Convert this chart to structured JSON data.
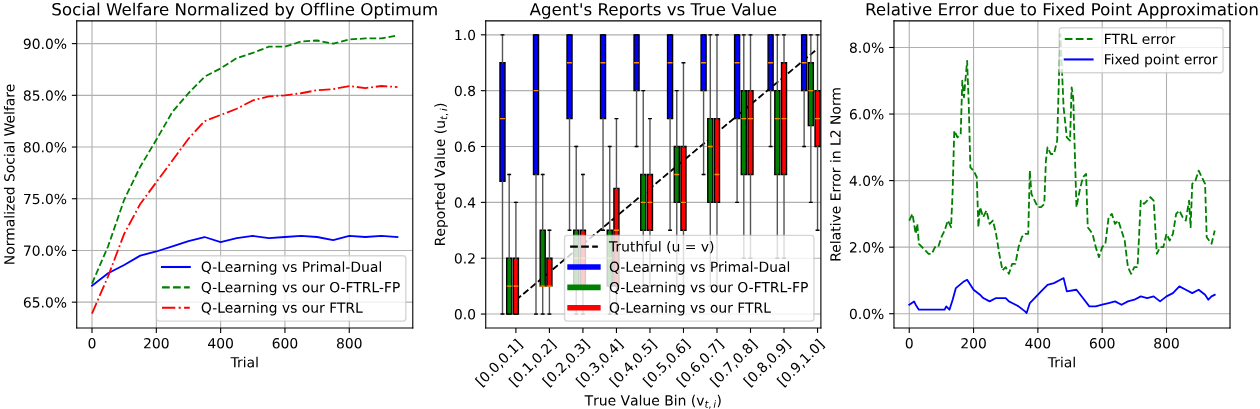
{
  "chart_data": [
    {
      "type": "line",
      "title": "Social Welfare Normalized by Offline Optimum",
      "xlabel": "Trial",
      "ylabel": "Normalized Social Welfare",
      "x": [
        0,
        50,
        100,
        150,
        200,
        250,
        300,
        350,
        400,
        450,
        500,
        550,
        600,
        650,
        700,
        750,
        800,
        850,
        900,
        950
      ],
      "series": [
        {
          "name": "Q-Learning vs Primal-Dual",
          "color": "#0000ff",
          "line_style": "solid",
          "values": [
            66.6,
            67.8,
            68.6,
            69.5,
            69.9,
            70.4,
            70.9,
            71.3,
            70.8,
            71.2,
            71.4,
            71.2,
            71.3,
            71.4,
            71.3,
            71.0,
            71.4,
            71.3,
            71.4,
            71.3
          ]
        },
        {
          "name": "Q-Learning vs our O-FTRL-FP",
          "color": "#008000",
          "line_style": "dashed",
          "values": [
            66.8,
            70.4,
            74.9,
            78.1,
            80.7,
            83.4,
            85.2,
            86.8,
            87.6,
            88.6,
            89.1,
            89.7,
            89.7,
            90.2,
            90.3,
            90.0,
            90.4,
            90.5,
            90.5,
            90.8
          ]
        },
        {
          "name": "Q-Learning vs our FTRL",
          "color": "#ff0000",
          "line_style": "dashdot",
          "values": [
            63.9,
            67.5,
            71.6,
            74.5,
            76.6,
            78.7,
            80.8,
            82.5,
            83.1,
            83.7,
            84.5,
            84.9,
            85.0,
            85.2,
            85.5,
            85.6,
            85.9,
            85.7,
            85.9,
            85.8
          ]
        }
      ],
      "xlim": [
        -47.5,
        997.5
      ],
      "ylim": [
        62.5,
        92.2
      ],
      "xticks": [
        0,
        200,
        400,
        600,
        800
      ],
      "yticks": [
        {
          "value": 65,
          "label": "65.0%"
        },
        {
          "value": 70,
          "label": "70.0%"
        },
        {
          "value": 75,
          "label": "75.0%"
        },
        {
          "value": 80,
          "label": "80.0%"
        },
        {
          "value": 85,
          "label": "85.0%"
        },
        {
          "value": 90,
          "label": "90.0%"
        }
      ],
      "grid": true,
      "legend": "bottom right"
    },
    {
      "type": "box",
      "title": "Agent's Reports vs True Value",
      "xlabel": "True Value Bin (v$_{t,i}$)",
      "ylabel": "Reported Value (u$_{t,i}$)",
      "categories": [
        "[0.0,0.1]",
        "[0.1,0.2]",
        "[0.2,0.3]",
        "[0.3,0.4]",
        "[0.4,0.5]",
        "[0.5,0.6]",
        "[0.6,0.7]",
        "[0.7,0.8]",
        "[0.8,0.9]",
        "[0.9,1.0]"
      ],
      "series": [
        {
          "name": "Truthful (u = v)",
          "type": "line",
          "color": "#000000",
          "line_style": "dashed",
          "values": [
            0.05,
            0.15,
            0.25,
            0.35,
            0.45,
            0.55,
            0.65,
            0.75,
            0.85,
            0.95
          ]
        },
        {
          "name": "Q-Learning vs Primal-Dual",
          "type": "box",
          "color": "#0000ff",
          "boxes": [
            {
              "low": 0,
              "q1": 0.475,
              "median": 0.7,
              "q3": 0.9,
              "high": 1.0
            },
            {
              "low": 0,
              "q1": 0.5,
              "median": 0.8,
              "q3": 1.0,
              "high": 1.0
            },
            {
              "low": 0.3,
              "q1": 0.7,
              "median": 0.9,
              "q3": 1.0,
              "high": 1.0
            },
            {
              "low": 0.3,
              "q1": 0.7,
              "median": 0.9,
              "q3": 1.0,
              "high": 1.0
            },
            {
              "low": 0.6,
              "q1": 0.8,
              "median": 0.9,
              "q3": 1.0,
              "high": 1.0
            },
            {
              "low": 0.3,
              "q1": 0.7,
              "median": 0.9,
              "q3": 1.0,
              "high": 1.0
            },
            {
              "low": 0.5,
              "q1": 0.8,
              "median": 0.9,
              "q3": 1.0,
              "high": 1.0
            },
            {
              "low": 0.4,
              "q1": 0.7,
              "median": 0.9,
              "q3": 1.0,
              "high": 1.0
            },
            {
              "low": 0.6,
              "q1": 0.8,
              "median": 0.9,
              "q3": 1.0,
              "high": 1.0
            },
            {
              "low": 0.6,
              "q1": 0.8,
              "median": 0.9,
              "q3": 1.0,
              "high": 1.0
            }
          ]
        },
        {
          "name": "Q-Learning vs our O-FTRL-FP",
          "type": "box",
          "color": "#008000",
          "boxes": [
            {
              "low": 0,
              "q1": 0,
              "median": 0.1,
              "q3": 0.2,
              "high": 0.5
            },
            {
              "low": 0,
              "q1": 0.1,
              "median": 0.1,
              "q3": 0.3,
              "high": 0.5
            },
            {
              "low": 0,
              "q1": 0.1,
              "median": 0.2,
              "q3": 0.3,
              "high": 0.6
            },
            {
              "low": 0,
              "q1": 0.1,
              "median": 0.2,
              "q3": 0.3,
              "high": 0.6
            },
            {
              "low": 0.1,
              "q1": 0.3,
              "median": 0.4,
              "q3": 0.5,
              "high": 0.8
            },
            {
              "low": 0.1,
              "q1": 0.4,
              "median": 0.5,
              "q3": 0.6,
              "high": 0.8
            },
            {
              "low": 0.1,
              "q1": 0.4,
              "median": 0.6,
              "q3": 0.7,
              "high": 1.0
            },
            {
              "low": 0.2,
              "q1": 0.5,
              "median": 0.7,
              "q3": 0.8,
              "high": 1.0
            },
            {
              "low": 0.2,
              "q1": 0.5,
              "median": 0.7,
              "q3": 0.8,
              "high": 1.0
            },
            {
              "low": 0.4,
              "q1": 0.675,
              "median": 0.8,
              "q3": 0.9,
              "high": 1.0
            }
          ]
        },
        {
          "name": "Q-Learning vs our FTRL",
          "type": "box",
          "color": "#ff0000",
          "boxes": [
            {
              "low": 0,
              "q1": 0,
              "median": 0.1,
              "q3": 0.2,
              "high": 0.4
            },
            {
              "low": 0,
              "q1": 0.1,
              "median": 0.1,
              "q3": 0.2,
              "high": 0.3
            },
            {
              "low": 0,
              "q1": 0.1,
              "median": 0.2,
              "q3": 0.3,
              "high": 0.5
            },
            {
              "low": 0,
              "q1": 0.1,
              "median": 0.3,
              "q3": 0.45,
              "high": 0.7
            },
            {
              "low": 0.1,
              "q1": 0.3,
              "median": 0.4,
              "q3": 0.5,
              "high": 0.7
            },
            {
              "low": 0.1,
              "q1": 0.3,
              "median": 0.4,
              "q3": 0.6,
              "high": 0.9
            },
            {
              "low": 0.1,
              "q1": 0.4,
              "median": 0.5,
              "q3": 0.7,
              "high": 1.0
            },
            {
              "low": 0.2,
              "q1": 0.5,
              "median": 0.7,
              "q3": 0.8,
              "high": 1.0
            },
            {
              "low": 0.2,
              "q1": 0.5,
              "median": 0.7,
              "q3": 0.9,
              "high": 1.0
            },
            {
              "low": 0.3,
              "q1": 0.6,
              "median": 0.7,
              "q3": 0.8,
              "high": 1.0
            }
          ]
        }
      ],
      "ylim": [
        -0.05,
        1.05
      ],
      "yticks": [
        {
          "value": 0,
          "label": "0.0"
        },
        {
          "value": 0.2,
          "label": "0.2"
        },
        {
          "value": 0.4,
          "label": "0.4"
        },
        {
          "value": 0.6,
          "label": "0.6"
        },
        {
          "value": 0.8,
          "label": "0.8"
        },
        {
          "value": 1.0,
          "label": "1.0"
        }
      ],
      "grid": "y",
      "legend": "bottom right"
    },
    {
      "type": "line",
      "title": "Relative Error due to Fixed Point Approximation",
      "xlabel": "Trial",
      "ylabel": "Relative Error in L2 Norm",
      "series": [
        {
          "name": "FTRL error",
          "color": "#008000",
          "line_style": "dashed",
          "x": [
            0,
            10,
            20,
            25,
            30,
            40,
            50,
            60,
            70,
            80,
            90,
            100,
            110,
            120,
            130,
            135,
            140,
            150,
            160,
            165,
            170,
            180,
            185,
            190,
            200,
            210,
            215,
            220,
            230,
            240,
            250,
            260,
            270,
            280,
            290,
            300,
            310,
            320,
            330,
            340,
            350,
            360,
            370,
            375,
            380,
            390,
            400,
            410,
            420,
            425,
            430,
            440,
            450,
            460,
            465,
            470,
            480,
            490,
            500,
            505,
            510,
            515,
            520,
            530,
            540,
            550,
            555,
            570,
            580,
            590,
            600,
            610,
            620,
            630,
            640,
            650,
            660,
            670,
            680,
            690,
            700,
            710,
            720,
            730,
            740,
            750,
            760,
            770,
            780,
            790,
            800,
            810,
            820,
            830,
            840,
            850,
            860,
            870,
            875,
            880,
            890,
            900,
            910,
            920,
            925,
            940,
            950
          ],
          "values": [
            2.8,
            3.0,
            2.4,
            2.7,
            2.1,
            2.0,
            1.9,
            1.8,
            1.8,
            2.0,
            2.0,
            2.3,
            2.5,
            2.8,
            2.6,
            3.7,
            5.5,
            5.3,
            5.4,
            7.0,
            6.5,
            7.6,
            6.3,
            4.4,
            4.3,
            4.1,
            2.6,
            3.2,
            2.9,
            3.1,
            2.7,
            2.8,
            2.4,
            1.8,
            1.3,
            1.4,
            1.2,
            1.5,
            1.5,
            2.0,
            2.3,
            2.4,
            2.4,
            4.3,
            3.6,
            3.4,
            3.2,
            3.2,
            3.3,
            4.6,
            5.0,
            4.8,
            4.8,
            5.2,
            6.9,
            8.4,
            6.2,
            5.3,
            5.2,
            6.8,
            6.5,
            4.8,
            3.2,
            3.7,
            4.1,
            4.2,
            2.6,
            2.4,
            2.0,
            1.7,
            2.0,
            2.1,
            2.9,
            3.0,
            2.7,
            2.8,
            2.5,
            2.2,
            1.4,
            1.2,
            1.4,
            1.4,
            3.4,
            3.3,
            3.4,
            3.5,
            3.4,
            1.8,
            2.0,
            2.0,
            2.4,
            2.2,
            2.4,
            3.0,
            3.1,
            2.9,
            2.8,
            3.4,
            2.6,
            3.9,
            4.0,
            4.3,
            4.1,
            3.9,
            2.3,
            2.1,
            2.5
          ]
        },
        {
          "name": "Fixed point error",
          "color": "#0000ff",
          "line_style": "solid",
          "x": [
            0,
            15,
            20,
            30,
            110,
            115,
            125,
            135,
            145,
            170,
            180,
            190,
            200,
            220,
            230,
            250,
            270,
            300,
            310,
            320,
            340,
            360,
            365,
            375,
            390,
            410,
            430,
            450,
            470,
            480,
            490,
            520,
            540,
            560,
            580,
            600,
            620,
            640,
            660,
            680,
            700,
            720,
            740,
            760,
            780,
            800,
            820,
            840,
            860,
            880,
            900,
            920,
            930,
            940,
            950
          ],
          "values": [
            0.27,
            0.37,
            0.27,
            0.12,
            0.12,
            0.22,
            0.12,
            0.42,
            0.77,
            0.97,
            1.02,
            0.87,
            0.72,
            0.57,
            0.47,
            0.37,
            0.47,
            0.47,
            0.37,
            0.32,
            0.22,
            0.07,
            0.02,
            0.32,
            0.47,
            0.67,
            0.87,
            0.92,
            1.02,
            1.07,
            0.67,
            0.72,
            0.47,
            0.22,
            0.22,
            0.27,
            0.32,
            0.37,
            0.27,
            0.37,
            0.42,
            0.52,
            0.47,
            0.52,
            0.37,
            0.52,
            0.62,
            0.82,
            0.72,
            0.62,
            0.72,
            0.57,
            0.42,
            0.52,
            0.57
          ]
        }
      ],
      "xlim": [
        -47.5,
        997.5
      ],
      "ylim": [
        -0.43,
        8.8
      ],
      "xticks": [
        0,
        200,
        400,
        600,
        800
      ],
      "yticks": [
        {
          "value": 0,
          "label": "0.0%"
        },
        {
          "value": 2,
          "label": "2.0%"
        },
        {
          "value": 4,
          "label": "4.0%"
        },
        {
          "value": 6,
          "label": "6.0%"
        },
        {
          "value": 8,
          "label": "8.0%"
        }
      ],
      "grid": true,
      "legend": "top right"
    }
  ]
}
